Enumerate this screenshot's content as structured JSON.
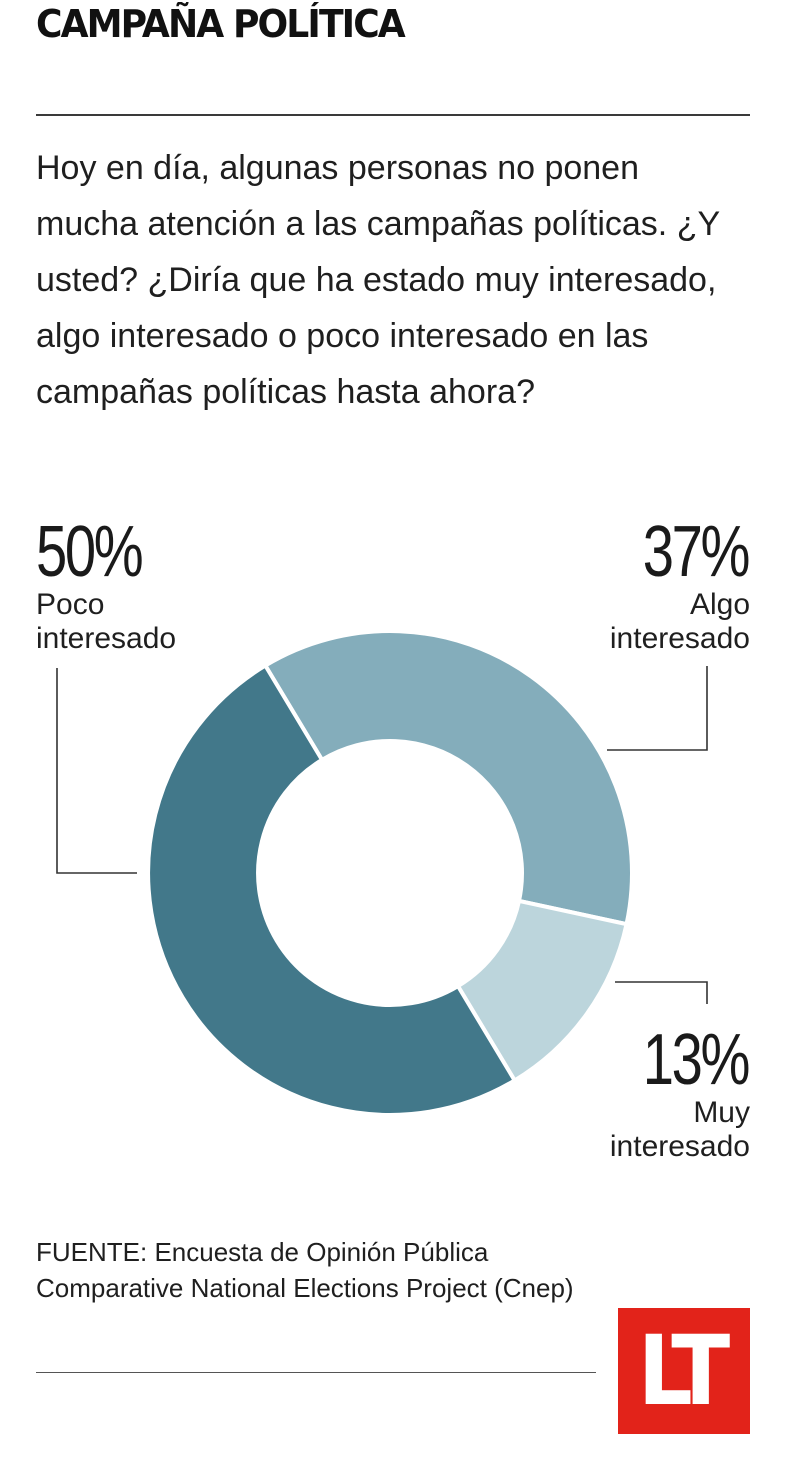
{
  "title": "CAMPAÑA POLÍTICA",
  "question": "Hoy en día, algunas personas no ponen mucha atención a las campañas políticas. ¿Y usted? ¿Diría que ha estado muy interesado, algo interesado o poco interesado en las campañas políticas hasta ahora?",
  "chart_data": {
    "type": "pie",
    "donut": true,
    "slices": [
      {
        "label_line1": "Algo",
        "label_line2": "interesado",
        "value": 37,
        "display": "37%",
        "color": "#84adbb"
      },
      {
        "label_line1": "Muy",
        "label_line2": "interesado",
        "value": 13,
        "display": "13%",
        "color": "#bcd5dc"
      },
      {
        "label_line1": "Poco",
        "label_line2": "interesado",
        "value": 50,
        "display": "50%",
        "color": "#42788a"
      }
    ]
  },
  "source": "FUENTE: Encuesta de Opinión Pública Comparative National Elections Project (Cnep)",
  "logo": "LT"
}
